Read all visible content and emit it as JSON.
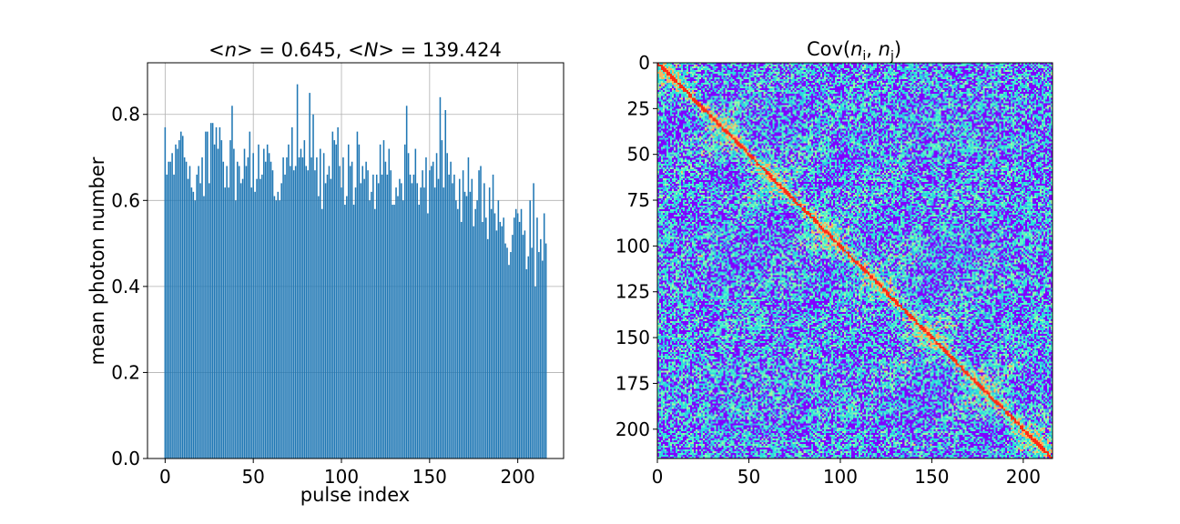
{
  "chart_data": [
    {
      "type": "bar",
      "title": "<n> = 0.645, <N> = 139.424",
      "title_parts": [
        "<",
        "n",
        "> = 0.645, <",
        "N",
        "> = 139.424"
      ],
      "xlabel": "pulse index",
      "ylabel": "mean photon number",
      "xlim": [
        -10,
        226
      ],
      "ylim": [
        0,
        0.92
      ],
      "xticks": [
        0,
        50,
        100,
        150,
        200
      ],
      "yticks": [
        0.0,
        0.2,
        0.4,
        0.6,
        0.8
      ],
      "ytick_labels": [
        "0.0",
        "0.2",
        "0.4",
        "0.6",
        "0.8"
      ],
      "grid": true,
      "bar_color": "#1f77b4",
      "x_start": 0,
      "values": [
        0.77,
        0.66,
        0.69,
        0.69,
        0.71,
        0.66,
        0.73,
        0.72,
        0.74,
        0.76,
        0.75,
        0.7,
        0.69,
        0.65,
        0.68,
        0.63,
        0.62,
        0.6,
        0.66,
        0.68,
        0.64,
        0.7,
        0.61,
        0.76,
        0.76,
        0.64,
        0.78,
        0.78,
        0.73,
        0.77,
        0.72,
        0.77,
        0.74,
        0.69,
        0.63,
        0.68,
        0.63,
        0.74,
        0.82,
        0.72,
        0.6,
        0.69,
        0.68,
        0.64,
        0.65,
        0.72,
        0.68,
        0.7,
        0.76,
        0.63,
        0.71,
        0.62,
        0.65,
        0.73,
        0.65,
        0.66,
        0.72,
        0.69,
        0.73,
        0.71,
        0.69,
        0.67,
        0.61,
        0.6,
        0.62,
        0.6,
        0.64,
        0.7,
        0.66,
        0.7,
        0.73,
        0.68,
        0.77,
        0.67,
        0.68,
        0.87,
        0.7,
        0.72,
        0.7,
        0.74,
        0.68,
        0.67,
        0.85,
        0.7,
        0.8,
        0.67,
        0.7,
        0.61,
        0.72,
        0.58,
        0.71,
        0.64,
        0.66,
        0.68,
        0.65,
        0.76,
        0.74,
        0.73,
        0.77,
        0.68,
        0.63,
        0.7,
        0.59,
        0.61,
        0.73,
        0.68,
        0.69,
        0.59,
        0.63,
        0.76,
        0.73,
        0.64,
        0.68,
        0.65,
        0.69,
        0.67,
        0.6,
        0.62,
        0.66,
        0.58,
        0.66,
        0.64,
        0.73,
        0.66,
        0.74,
        0.69,
        0.66,
        0.72,
        0.67,
        0.59,
        0.59,
        0.63,
        0.61,
        0.65,
        0.64,
        0.6,
        0.73,
        0.82,
        0.71,
        0.66,
        0.64,
        0.66,
        0.72,
        0.64,
        0.59,
        0.63,
        0.67,
        0.63,
        0.7,
        0.57,
        0.67,
        0.68,
        0.69,
        0.63,
        0.71,
        0.65,
        0.84,
        0.74,
        0.63,
        0.81,
        0.71,
        0.66,
        0.69,
        0.64,
        0.66,
        0.6,
        0.58,
        0.65,
        0.55,
        0.67,
        0.62,
        0.61,
        0.7,
        0.62,
        0.65,
        0.54,
        0.58,
        0.6,
        0.67,
        0.68,
        0.55,
        0.64,
        0.56,
        0.51,
        0.63,
        0.58,
        0.66,
        0.57,
        0.53,
        0.6,
        0.55,
        0.54,
        0.56,
        0.5,
        0.49,
        0.45,
        0.48,
        0.52,
        0.56,
        0.58,
        0.57,
        0.55,
        0.58,
        0.52,
        0.53,
        0.44,
        0.47,
        0.6,
        0.49,
        0.64,
        0.4,
        0.56,
        0.48,
        0.51,
        0.46,
        0.57,
        0.5
      ]
    },
    {
      "type": "heatmap",
      "title": "Cov(n_i, n_j)",
      "title_parts": [
        "Cov(",
        "n",
        "i",
        ", ",
        "n",
        "j",
        ")"
      ],
      "size": 216,
      "xlim": [
        0,
        216
      ],
      "ylim": [
        216,
        0
      ],
      "xticks": [
        0,
        50,
        100,
        150,
        200
      ],
      "yticks": [
        0,
        25,
        50,
        75,
        100,
        125,
        150,
        175,
        200
      ],
      "colormap": "rainbow",
      "palette": [
        "#7f00ff",
        "#4a8bf6",
        "#2adddd",
        "#5cf3c6",
        "#a4f4a4",
        "#ffb360",
        "#ff2f18"
      ],
      "diagonal_color": "#ff2a10"
    }
  ]
}
